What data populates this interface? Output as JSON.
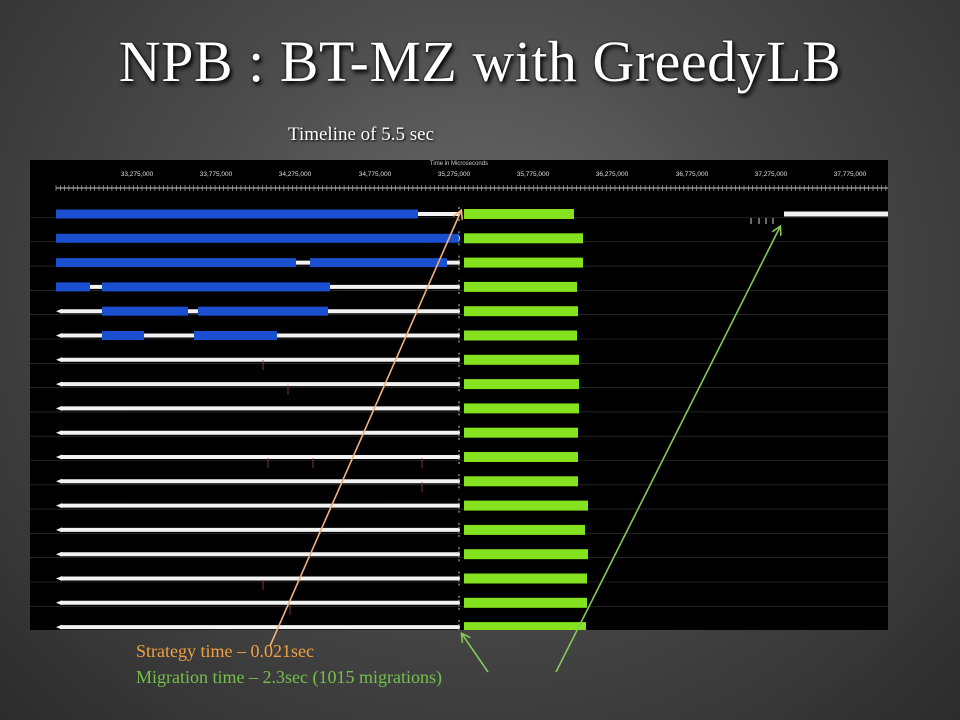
{
  "slide": {
    "title": "NPB : BT-MZ with GreedyLB",
    "subtitle": "Timeline of 5.5 sec"
  },
  "timeline": {
    "axis_title": "Time in Microseconds",
    "tick_labels": [
      "33,275,000",
      "33,775,000",
      "34,275,000",
      "34,775,000",
      "35,275,000",
      "35,775,000",
      "36,275,000",
      "36,775,000",
      "37,275,000",
      "37,775,000"
    ],
    "row_count": 18,
    "colors": {
      "background": "#000000",
      "compute": "#1a4fd0",
      "migration": "#84e21e",
      "idle": "#f2f2f2",
      "strategy_arrow": "#f0b080",
      "migration_arrow": "#84c85a"
    }
  },
  "annotations": {
    "strategy": "Strategy time – 0.021sec",
    "migration": "Migration time – 2.3sec (1015 migrations)"
  }
}
